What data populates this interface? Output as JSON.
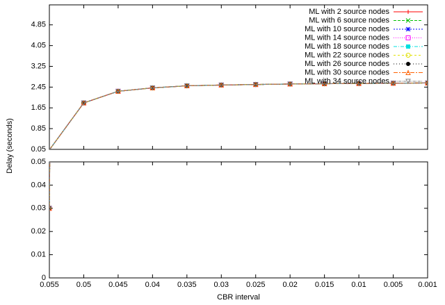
{
  "chart_data": {
    "type": "line",
    "x_label": "CBR interval",
    "y_label": "Delay (seconds)",
    "categories": [
      "0.055",
      "0.05",
      "0.045",
      "0.04",
      "0.035",
      "0.03",
      "0.025",
      "0.02",
      "0.015",
      "0.01",
      "0.005",
      "0.001"
    ],
    "ylim_top": [
      0.05,
      5.62
    ],
    "yticks_top": [
      0.05,
      0.85,
      1.65,
      2.45,
      3.25,
      4.05,
      4.85
    ],
    "ylim": [
      0,
      0.05
    ],
    "yticks": [
      0,
      0.01,
      0.02,
      0.03,
      0.04,
      0.05
    ],
    "legend": "upper right",
    "series": [
      {
        "name": "ML with 2 source nodes",
        "color": "#ff0000",
        "values": [
          0.03,
          1.84,
          2.29,
          2.42,
          2.5,
          2.53,
          2.55,
          2.57,
          2.58,
          2.59,
          2.6,
          2.61
        ]
      },
      {
        "name": "ML with 6 source nodes",
        "color": "#00c000",
        "values": [
          0.03,
          1.84,
          2.29,
          2.42,
          2.5,
          2.53,
          2.55,
          2.57,
          2.58,
          2.59,
          2.6,
          2.61
        ]
      },
      {
        "name": "ML with 10 source nodes",
        "color": "#0000ff",
        "values": [
          0.03,
          1.84,
          2.29,
          2.42,
          2.5,
          2.53,
          2.55,
          2.57,
          2.58,
          2.59,
          2.6,
          2.61
        ]
      },
      {
        "name": "ML with 14 source nodes",
        "color": "#ff00ff",
        "values": [
          0.03,
          1.84,
          2.29,
          2.42,
          2.5,
          2.53,
          2.55,
          2.57,
          2.58,
          2.59,
          2.6,
          2.61
        ]
      },
      {
        "name": "ML with 18 source nodes",
        "color": "#00e0e0",
        "values": [
          0.03,
          1.84,
          2.29,
          2.42,
          2.5,
          2.53,
          2.55,
          2.57,
          2.58,
          2.59,
          2.6,
          2.61
        ]
      },
      {
        "name": "ML with 22 source nodes",
        "color": "#e0e000",
        "values": [
          0.03,
          1.84,
          2.29,
          2.42,
          2.5,
          2.53,
          2.55,
          2.57,
          2.58,
          2.59,
          2.6,
          2.61
        ]
      },
      {
        "name": "ML with 26 source nodes",
        "color": "#000000",
        "values": [
          0.03,
          1.84,
          2.29,
          2.42,
          2.5,
          2.53,
          2.55,
          2.57,
          2.58,
          2.59,
          2.6,
          2.61
        ]
      },
      {
        "name": "ML with 30 source nodes",
        "color": "#ff6000",
        "values": [
          0.03,
          1.84,
          2.29,
          2.42,
          2.5,
          2.53,
          2.55,
          2.57,
          2.58,
          2.59,
          2.6,
          2.61
        ]
      },
      {
        "name": "ML with 34 source nodes",
        "color": "#808080",
        "values": [
          0.03,
          1.84,
          2.29,
          2.42,
          2.5,
          2.53,
          2.55,
          2.57,
          2.58,
          2.59,
          2.6,
          2.61
        ]
      }
    ]
  }
}
